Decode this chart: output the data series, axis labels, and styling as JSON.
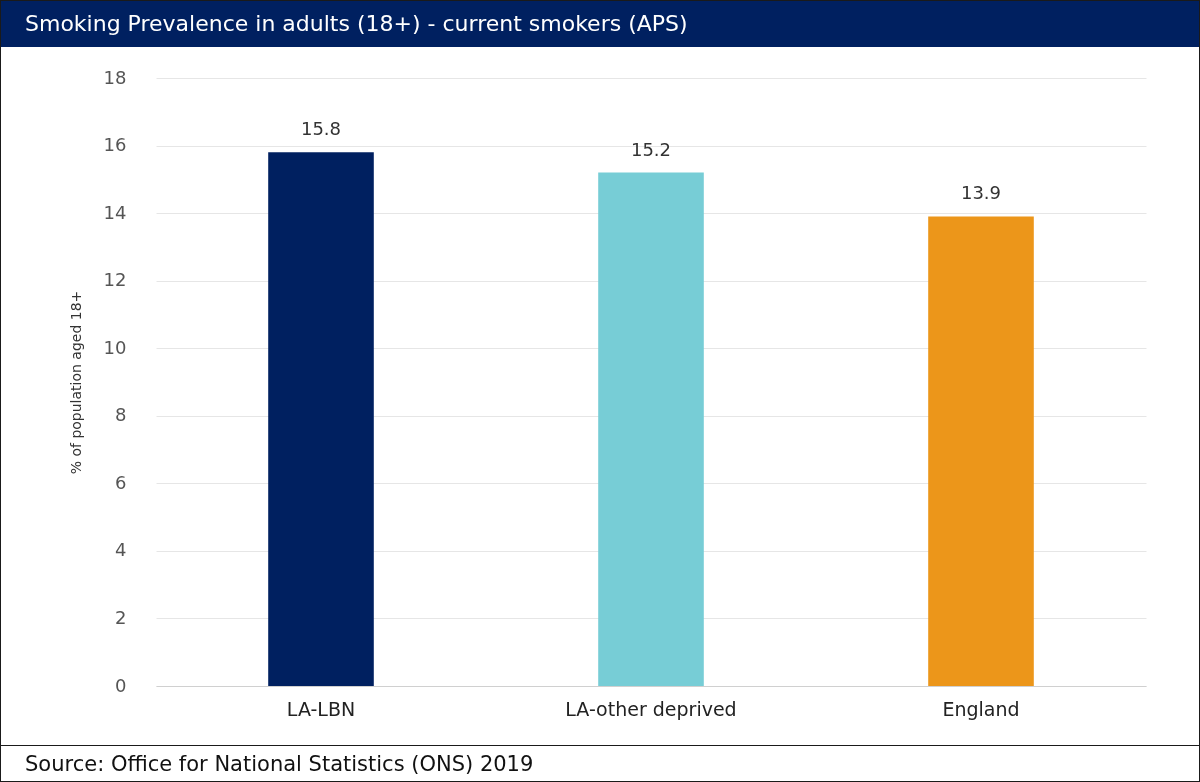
{
  "chart_data": {
    "type": "bar",
    "title": "Smoking Prevalence in adults (18+) - current smokers (APS)",
    "categories": [
      "LA-LBN",
      "LA-other deprived",
      "England"
    ],
    "values": [
      15.8,
      15.2,
      13.9
    ],
    "colors": [
      "#002060",
      "#77cdd6",
      "#ec961a"
    ],
    "ylabel": "% of population aged 18+",
    "ylim": [
      0,
      18
    ],
    "yticks": [
      0,
      2,
      4,
      6,
      8,
      10,
      12,
      14,
      16,
      18
    ],
    "grid": "y",
    "data_labels": true,
    "annotations": [
      "Source: Office for National Statistics (ONS) 2019"
    ]
  }
}
